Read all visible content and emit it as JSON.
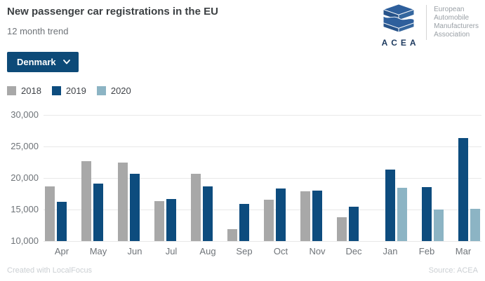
{
  "header": {
    "title": "New passenger car registrations in the EU",
    "subtitle": "12 month trend"
  },
  "logo": {
    "acea_label": "ACEA",
    "org_lines": [
      "European",
      "Automobile",
      "Manufacturers",
      "Association"
    ]
  },
  "controls": {
    "country_selector_value": "Denmark"
  },
  "footer": {
    "left": "Created with LocalFocus",
    "right": "Source: ACEA"
  },
  "colors": {
    "series_2018": "#a8a8a8",
    "series_2019": "#0d4c7e",
    "series_2020": "#8cb4c4",
    "button_bg": "#0d4a78",
    "gridline": "#e8e8e8",
    "axis_text": "#6e7378"
  },
  "chart_data": {
    "type": "bar",
    "title": "New passenger car registrations in the EU",
    "subtitle": "12 month trend",
    "region": "Denmark",
    "categories": [
      "Apr",
      "May",
      "Jun",
      "Jul",
      "Aug",
      "Sep",
      "Oct",
      "Nov",
      "Dec",
      "Jan",
      "Feb",
      "Mar"
    ],
    "series": [
      {
        "name": "2018",
        "color": "#a8a8a8",
        "values": [
          18700,
          22700,
          22500,
          16300,
          20700,
          11900,
          16600,
          17900,
          13800,
          null,
          null,
          null
        ]
      },
      {
        "name": "2019",
        "color": "#0d4c7e",
        "values": [
          16200,
          19100,
          20700,
          16700,
          18700,
          15900,
          18300,
          18000,
          15400,
          21300,
          18600,
          26300
        ]
      },
      {
        "name": "2020",
        "color": "#8cb4c4",
        "values": [
          null,
          null,
          null,
          null,
          null,
          null,
          null,
          null,
          null,
          18500,
          15000,
          15100
        ]
      }
    ],
    "ylim": [
      10000,
      30000
    ],
    "yticks": [
      10000,
      15000,
      20000,
      25000,
      30000
    ],
    "ytick_labels": [
      "10,000",
      "15,000",
      "20,000",
      "25,000",
      "30,000"
    ],
    "grid": true,
    "legend_position": "top-left"
  }
}
